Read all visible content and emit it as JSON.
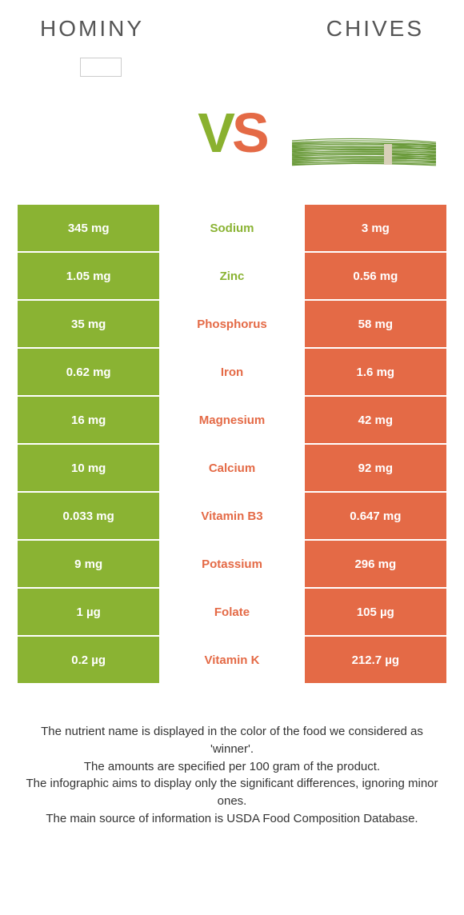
{
  "header": {
    "left_title": "HOMINY",
    "right_title": "CHIVES"
  },
  "vs": {
    "v": "V",
    "s": "S"
  },
  "colors": {
    "green": "#8ab333",
    "orange": "#e46a46",
    "text": "#333333",
    "title": "#555555",
    "background": "#ffffff"
  },
  "chives_svg": {
    "stroke": "#6a9a3a",
    "band": "#d8d0b8"
  },
  "table": {
    "rows": [
      {
        "left": "345 mg",
        "label": "Sodium",
        "right": "3 mg",
        "winner": "green"
      },
      {
        "left": "1.05 mg",
        "label": "Zinc",
        "right": "0.56 mg",
        "winner": "green"
      },
      {
        "left": "35 mg",
        "label": "Phosphorus",
        "right": "58 mg",
        "winner": "orange"
      },
      {
        "left": "0.62 mg",
        "label": "Iron",
        "right": "1.6 mg",
        "winner": "orange"
      },
      {
        "left": "16 mg",
        "label": "Magnesium",
        "right": "42 mg",
        "winner": "orange"
      },
      {
        "left": "10 mg",
        "label": "Calcium",
        "right": "92 mg",
        "winner": "orange"
      },
      {
        "left": "0.033 mg",
        "label": "Vitamin B3",
        "right": "0.647 mg",
        "winner": "orange"
      },
      {
        "left": "9 mg",
        "label": "Potassium",
        "right": "296 mg",
        "winner": "orange"
      },
      {
        "left": "1 µg",
        "label": "Folate",
        "right": "105 µg",
        "winner": "orange"
      },
      {
        "left": "0.2 µg",
        "label": "Vitamin K",
        "right": "212.7 µg",
        "winner": "orange"
      }
    ]
  },
  "footer": {
    "line1": "The nutrient name is displayed in the color of the food we considered as 'winner'.",
    "line2": "The amounts are specified per 100 gram of the product.",
    "line3": "The infographic aims to display only the significant differences, ignoring minor ones.",
    "line4": "The main source of information is USDA Food Composition Database."
  }
}
